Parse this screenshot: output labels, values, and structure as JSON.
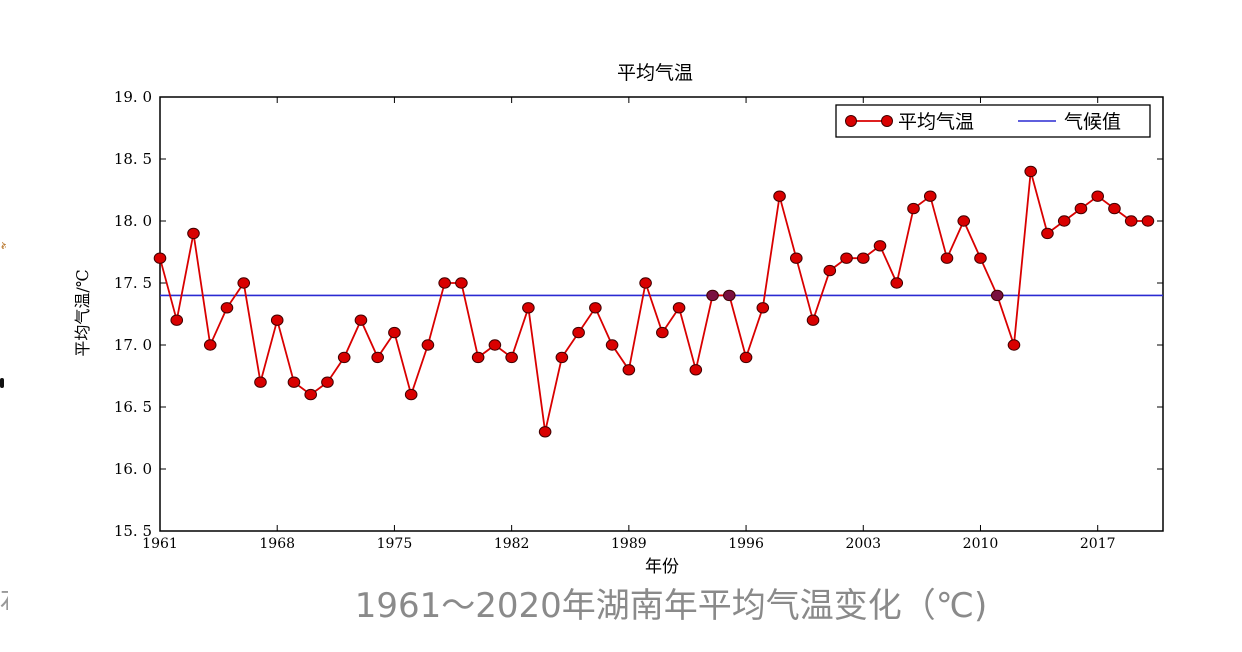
{
  "caption": "1961～2020年湖南年平均气温变化（℃)",
  "chart_data": {
    "type": "line",
    "title": "平均气温",
    "xlabel": "年份",
    "ylabel": "平均气温/℃",
    "x": [
      1961,
      1962,
      1963,
      1964,
      1965,
      1966,
      1967,
      1968,
      1969,
      1970,
      1971,
      1972,
      1973,
      1974,
      1975,
      1976,
      1977,
      1978,
      1979,
      1980,
      1981,
      1982,
      1983,
      1984,
      1985,
      1986,
      1987,
      1988,
      1989,
      1990,
      1991,
      1992,
      1993,
      1994,
      1995,
      1996,
      1997,
      1998,
      1999,
      2000,
      2001,
      2002,
      2003,
      2004,
      2005,
      2006,
      2007,
      2008,
      2009,
      2010,
      2011,
      2012,
      2013,
      2014,
      2015,
      2016,
      2017,
      2018,
      2019,
      2020
    ],
    "series": [
      {
        "name": "平均气温",
        "values": [
          17.7,
          17.2,
          17.9,
          17.0,
          17.3,
          17.5,
          16.7,
          17.2,
          16.7,
          16.6,
          16.7,
          16.9,
          17.2,
          16.9,
          17.1,
          16.6,
          17.0,
          17.5,
          17.5,
          16.9,
          17.0,
          16.9,
          17.3,
          16.3,
          16.9,
          17.1,
          17.3,
          17.0,
          16.8,
          17.5,
          17.1,
          17.3,
          16.8,
          17.4,
          17.4,
          16.9,
          17.3,
          18.2,
          17.7,
          17.2,
          17.6,
          17.7,
          17.7,
          17.8,
          17.5,
          18.1,
          18.2,
          17.7,
          18.0,
          17.7,
          17.4,
          17.0,
          18.4,
          17.9,
          18.0,
          18.1,
          18.2,
          18.1,
          18.0,
          18.0
        ],
        "color": "#d90000",
        "marker_fill": "#d90000",
        "marker_edge": "#400000"
      },
      {
        "name": "气候值",
        "constant": 17.4,
        "color": "#2a2ad2"
      }
    ],
    "xlim": [
      1961,
      2020.9
    ],
    "ylim": [
      15.5,
      19.0
    ],
    "xticks": [
      1961,
      1968,
      1975,
      1982,
      1989,
      1996,
      2003,
      2010,
      2017
    ],
    "yticks": [
      15.5,
      16.0,
      16.5,
      17.0,
      17.5,
      18.0,
      18.5,
      19.0
    ],
    "ytick_labels": [
      "15. 5",
      "16. 0",
      "16. 5",
      "17. 0",
      "17. 5",
      "18. 0",
      "18. 5",
      "19. 0"
    ],
    "legend_position": "top-right",
    "grid": false
  }
}
